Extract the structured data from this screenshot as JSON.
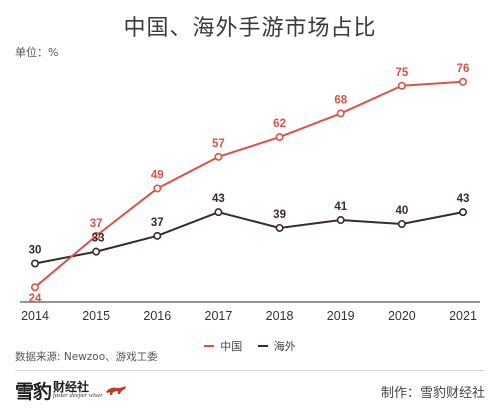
{
  "page": {
    "title": "中国、海外手游市场占比",
    "unit_label": "单位：%",
    "source": "数据来源: Newzoo、游戏工委",
    "logo": {
      "brand": "雪豹",
      "sub_cn": "财经社",
      "sub_en": "faster deeper wiser"
    },
    "credit": "制作：雪豹财经社"
  },
  "chart_data": {
    "type": "line",
    "title": "中国、海外手游市场占比",
    "ylabel": "单位：%",
    "x": [
      "2014",
      "2015",
      "2016",
      "2017",
      "2018",
      "2019",
      "2020",
      "2021"
    ],
    "series": [
      {
        "name": "中国",
        "color": "#d9534a",
        "values": [
          24,
          37,
          49,
          57,
          62,
          68,
          75,
          76
        ]
      },
      {
        "name": "海外",
        "color": "#3b2a28",
        "values": [
          30,
          33,
          37,
          43,
          39,
          41,
          40,
          43
        ]
      }
    ],
    "ylim": [
      20,
      80
    ],
    "grid": false,
    "legend": "bottom-center",
    "markers": "hollow-circle",
    "data_labels": true
  }
}
